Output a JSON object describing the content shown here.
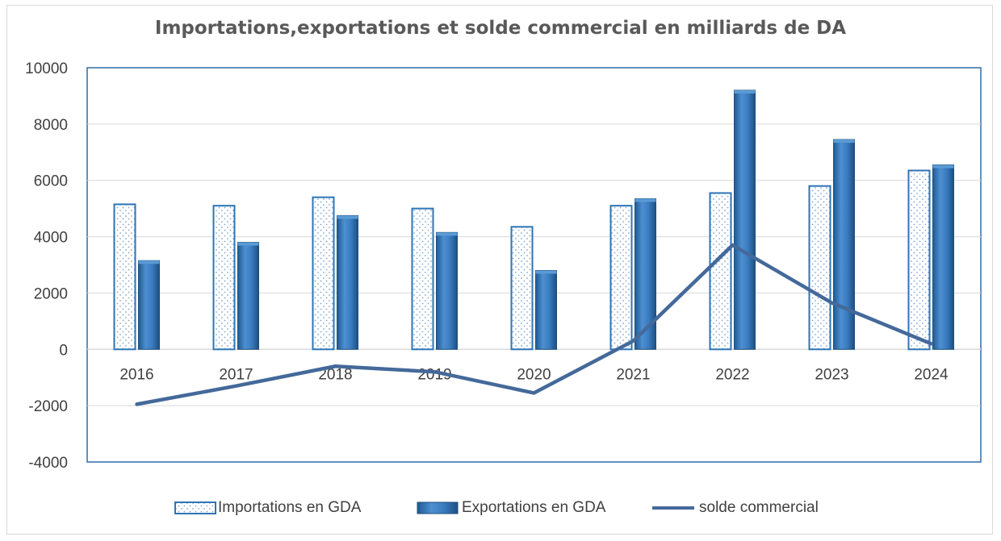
{
  "chart_data": {
    "type": "bar",
    "title": "Importations,exportations et solde commercial en milliards de DA",
    "xlabel": "",
    "ylabel": "",
    "categories": [
      "2016",
      "2017",
      "2018",
      "2019",
      "2020",
      "2021",
      "2022",
      "2023",
      "2024"
    ],
    "ylim": [
      -4000,
      10000
    ],
    "yticks": [
      "10000",
      "8000",
      "6000",
      "4000",
      "2000",
      "0",
      "-2000",
      "-4000"
    ],
    "grid": true,
    "legend_position": "bottom",
    "series": [
      {
        "name": "Importations en GDA",
        "kind": "bar",
        "pattern": "dotted",
        "color": "#ffffff",
        "edge_color": "#2e75b6",
        "values": [
          5150,
          5100,
          5400,
          5000,
          4350,
          5100,
          5550,
          5800,
          6350
        ]
      },
      {
        "name": "Exportations en GDA",
        "kind": "bar",
        "color": "#2e75b6",
        "values": [
          3150,
          3800,
          4750,
          4150,
          2800,
          5350,
          9200,
          7450,
          6550
        ]
      },
      {
        "name": "solde commercial",
        "kind": "line",
        "color": "#44699a",
        "values": [
          -1950,
          -1300,
          -600,
          -800,
          -1550,
          300,
          3700,
          1650,
          200
        ]
      }
    ]
  }
}
